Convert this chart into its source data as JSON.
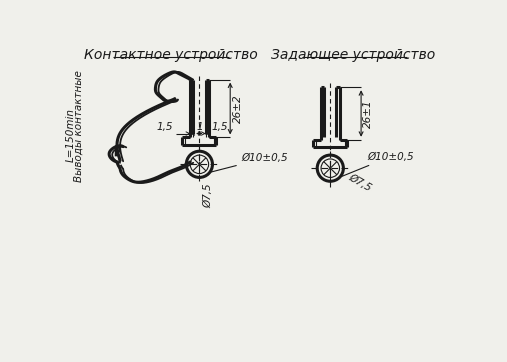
{
  "title_left": "Контактное устройство",
  "title_right": "Задающее устройство",
  "label_wires": "Выводы контактные",
  "label_length": "L=150min",
  "dim_26_2": "26±2",
  "dim_26_1": "26±1",
  "dim_15a": "1,5",
  "dim_15b": "1,5",
  "dim_1": "1",
  "dim_d10_05_left": "Ø10±0,5",
  "dim_d75_left": "Ø7,5",
  "dim_d10_05_right": "Ø10±0,5",
  "dim_d75_right": "Ø7,5",
  "bg_color": "#f0f0eb",
  "line_color": "#1a1a1a",
  "title_fontsize": 10,
  "dim_fontsize": 7.5,
  "label_fontsize": 7.5
}
